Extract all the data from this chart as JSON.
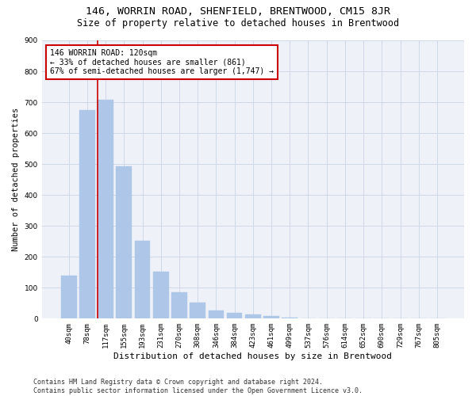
{
  "title": "146, WORRIN ROAD, SHENFIELD, BRENTWOOD, CM15 8JR",
  "subtitle": "Size of property relative to detached houses in Brentwood",
  "xlabel": "Distribution of detached houses by size in Brentwood",
  "ylabel": "Number of detached properties",
  "categories": [
    "40sqm",
    "78sqm",
    "117sqm",
    "155sqm",
    "193sqm",
    "231sqm",
    "270sqm",
    "308sqm",
    "346sqm",
    "384sqm",
    "423sqm",
    "461sqm",
    "499sqm",
    "537sqm",
    "576sqm",
    "614sqm",
    "652sqm",
    "690sqm",
    "729sqm",
    "767sqm",
    "805sqm"
  ],
  "values": [
    138,
    675,
    707,
    493,
    252,
    153,
    86,
    52,
    26,
    18,
    13,
    8,
    4,
    2,
    1,
    1,
    0,
    0,
    0,
    1,
    0
  ],
  "bar_color": "#aec6e8",
  "bar_edge_color": "#aec6e8",
  "vline_x": 2,
  "vline_color": "#cc0000",
  "annotation_text": "146 WORRIN ROAD: 120sqm\n← 33% of detached houses are smaller (861)\n67% of semi-detached houses are larger (1,747) →",
  "annotation_box_color": "#ffffff",
  "annotation_box_edge": "#cc0000",
  "ylim": [
    0,
    900
  ],
  "yticks": [
    0,
    100,
    200,
    300,
    400,
    500,
    600,
    700,
    800,
    900
  ],
  "grid_color": "#d0d8e8",
  "bg_color": "#eef2f8",
  "footer": "Contains HM Land Registry data © Crown copyright and database right 2024.\nContains public sector information licensed under the Open Government Licence v3.0.",
  "title_fontsize": 9.5,
  "subtitle_fontsize": 8.5,
  "xlabel_fontsize": 8,
  "ylabel_fontsize": 7.5,
  "tick_fontsize": 6.5,
  "annotation_fontsize": 7,
  "footer_fontsize": 6
}
